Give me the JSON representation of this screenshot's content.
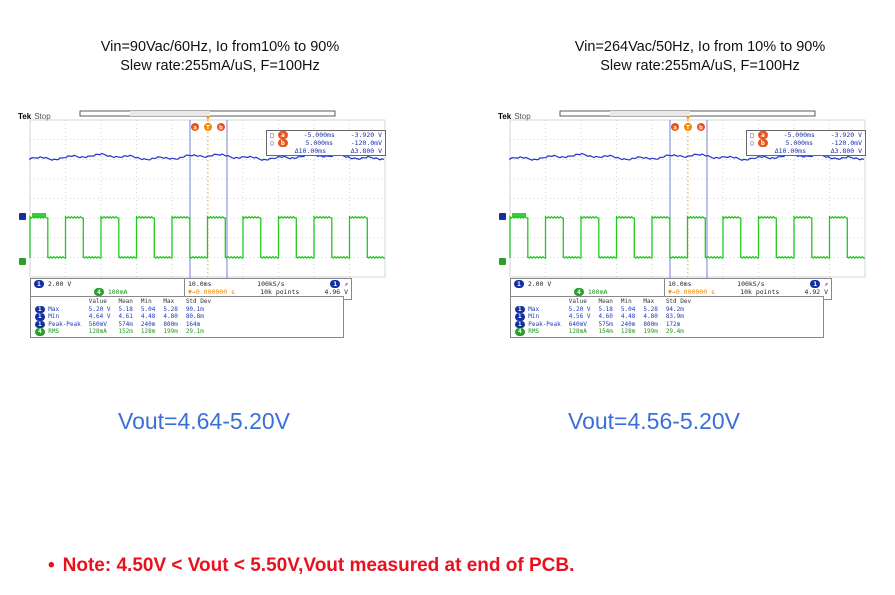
{
  "left": {
    "caption_line1": "Vin=90Vac/60Hz, Io from10% to 90%",
    "caption_line2": "Slew rate:255mA/uS, F=100Hz",
    "vout": "Vout=4.64-5.20V",
    "scope": {
      "brand": "Tek",
      "state": "Stop",
      "cursor_a_time": "-5.000ms",
      "cursor_a_val": "-3.920 V",
      "cursor_b_time": "5.000ms",
      "cursor_b_val": "-120.0mV",
      "delta_time": "Δ10.00ms",
      "delta_val": "Δ3.800 V",
      "ch1_scale": "2.00 V",
      "ch4_scale": "100mA",
      "timebase": "10.0ms",
      "sample_rate": "100kS/s",
      "record": "10k points",
      "trigger_pos": "▼→0.000000 s",
      "trigger_level": "4.96 V",
      "meas_headers": [
        "",
        "Value",
        "Mean",
        "Min",
        "Max",
        "Std Dev"
      ],
      "meas_rows": [
        {
          "ch": "1",
          "name": "Max",
          "vals": [
            "5.20 V",
            "5.18",
            "5.04",
            "5.28",
            "90.1m"
          ]
        },
        {
          "ch": "1",
          "name": "Min",
          "vals": [
            "4.64 V",
            "4.61",
            "4.48",
            "4.80",
            "80.8m"
          ]
        },
        {
          "ch": "1",
          "name": "Peak-Peak",
          "vals": [
            "560mV",
            "574m",
            "240m",
            "800m",
            "164m"
          ]
        },
        {
          "ch": "4",
          "name": "RMS",
          "vals": [
            "128mA",
            "152m",
            "128m",
            "199m",
            "29.1m"
          ]
        }
      ]
    }
  },
  "right": {
    "caption_line1": "Vin=264Vac/50Hz, Io from 10% to 90%",
    "caption_line2": "Slew rate:255mA/uS, F=100Hz",
    "vout": "Vout=4.56-5.20V",
    "scope": {
      "brand": "Tek",
      "state": "Stop",
      "cursor_a_time": "-5.000ms",
      "cursor_a_val": "-3.920 V",
      "cursor_b_time": "5.000ms",
      "cursor_b_val": "-120.0mV",
      "delta_time": "Δ10.00ms",
      "delta_val": "Δ3.800 V",
      "ch1_scale": "2.00 V",
      "ch4_scale": "100mA",
      "timebase": "10.0ms",
      "sample_rate": "100kS/s",
      "record": "10k points",
      "trigger_pos": "▼→0.000000 s",
      "trigger_level": "4.92 V",
      "meas_headers": [
        "",
        "Value",
        "Mean",
        "Min",
        "Max",
        "Std Dev"
      ],
      "meas_rows": [
        {
          "ch": "1",
          "name": "Max",
          "vals": [
            "5.20 V",
            "5.18",
            "5.04",
            "5.28",
            "94.2m"
          ]
        },
        {
          "ch": "1",
          "name": "Min",
          "vals": [
            "4.56 V",
            "4.60",
            "4.48",
            "4.80",
            "83.9m"
          ]
        },
        {
          "ch": "1",
          "name": "Peak-Peak",
          "vals": [
            "640mV",
            "575m",
            "240m",
            "800m",
            "172m"
          ]
        },
        {
          "ch": "4",
          "name": "RMS",
          "vals": [
            "128mA",
            "154m",
            "128m",
            "199m",
            "29.4m"
          ]
        }
      ]
    }
  },
  "note": {
    "bullet": "•",
    "text": "Note: 4.50V < Vout < 5.50V,Vout measured at end of PCB."
  },
  "colors": {
    "ch1_trace": "#1f35c8",
    "ch4_trace": "#22c81e",
    "vout_text": "#3b6fd8",
    "note_text": "#e8111e"
  }
}
